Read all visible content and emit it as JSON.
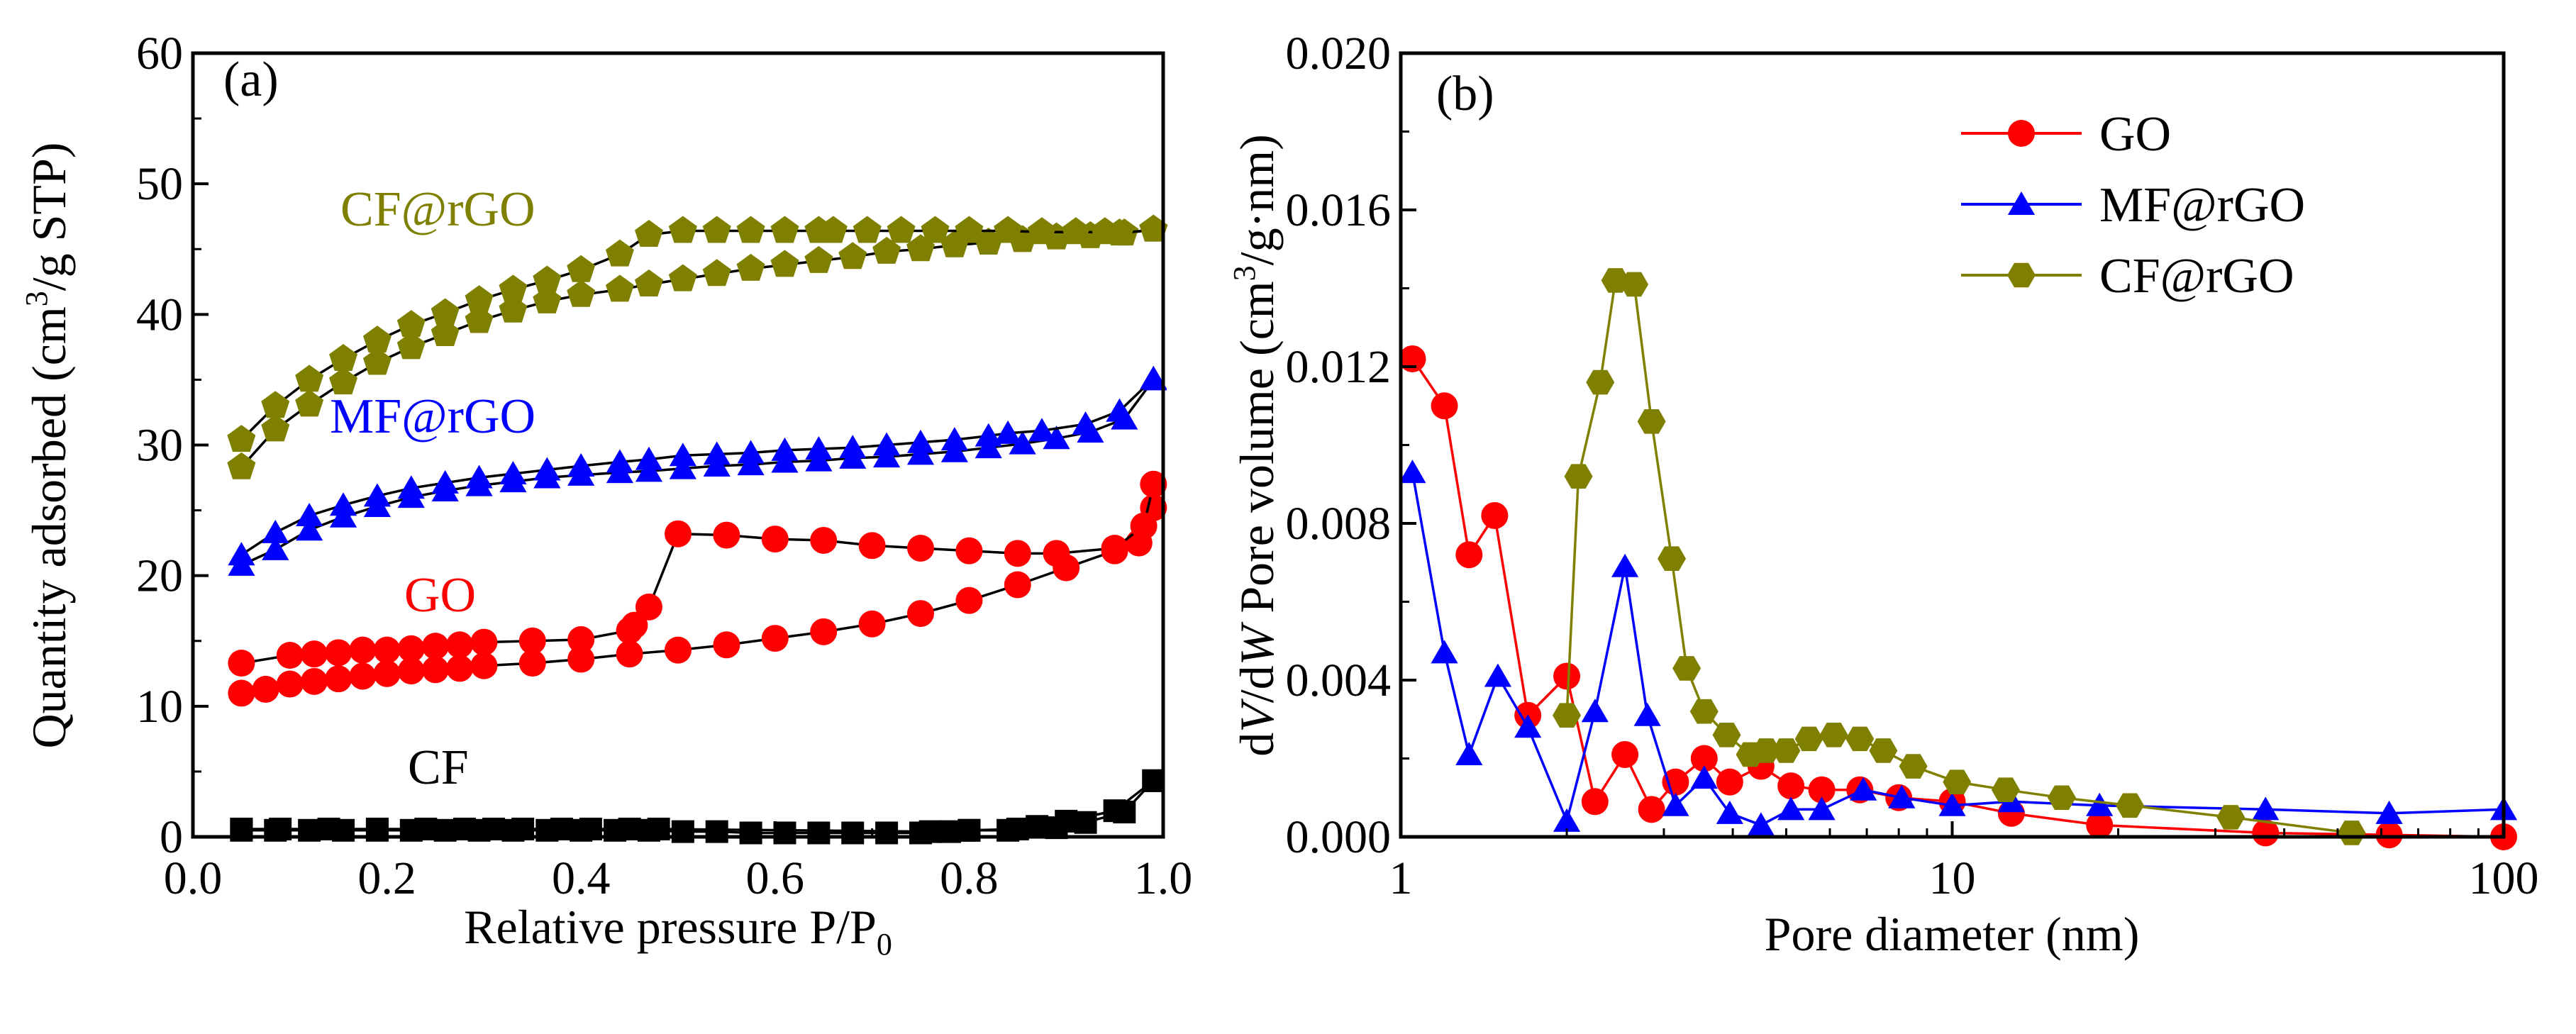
{
  "chart_data": [
    {
      "type": "scatter",
      "panel_label": "(a)",
      "xlabel": "Relative pressure P/P",
      "xlabel_sub": "0",
      "ylabel_pre": "Quantity adsorbed (cm",
      "ylabel_sup": "3",
      "ylabel_post": "/g STP)",
      "xlim": [
        0.0,
        1.0
      ],
      "ylim": [
        0,
        60
      ],
      "xticks": [
        "0.0",
        "0.2",
        "0.4",
        "0.6",
        "0.8",
        "1.0"
      ],
      "yticks": [
        "0",
        "10",
        "20",
        "30",
        "40",
        "50",
        "60"
      ],
      "annotations": {
        "cf_rgo": "CF@rGO",
        "mf_rgo": "MF@rGO",
        "go": "GO",
        "cf": "CF"
      },
      "series": [
        {
          "name": "CF@rGO adsorption",
          "color": "#808000",
          "marker": "pentagon",
          "x": [
            0.05,
            0.085,
            0.12,
            0.155,
            0.19,
            0.225,
            0.26,
            0.295,
            0.33,
            0.365,
            0.4,
            0.44,
            0.47,
            0.505,
            0.54,
            0.575,
            0.61,
            0.645,
            0.68,
            0.715,
            0.75,
            0.785,
            0.82,
            0.855,
            0.89,
            0.925,
            0.96,
            0.99
          ],
          "y": [
            28.3,
            31.2,
            33.1,
            34.8,
            36.3,
            37.5,
            38.5,
            39.5,
            40.3,
            41.0,
            41.5,
            41.9,
            42.3,
            42.7,
            43.1,
            43.5,
            43.8,
            44.1,
            44.4,
            44.8,
            45.0,
            45.3,
            45.5,
            45.7,
            45.9,
            46.0,
            46.2,
            46.5
          ]
        },
        {
          "name": "CF@rGO desorption",
          "color": "#808000",
          "marker": "pentagon",
          "x": [
            0.05,
            0.085,
            0.12,
            0.155,
            0.19,
            0.225,
            0.26,
            0.295,
            0.33,
            0.365,
            0.4,
            0.44,
            0.47,
            0.505,
            0.54,
            0.575,
            0.61,
            0.645,
            0.66,
            0.695,
            0.73,
            0.765,
            0.8,
            0.84,
            0.875,
            0.91,
            0.94,
            0.955,
            0.99
          ],
          "y": [
            30.4,
            33.0,
            35.0,
            36.6,
            38.0,
            39.2,
            40.1,
            41.1,
            41.9,
            42.6,
            43.4,
            44.6,
            46.1,
            46.4,
            46.4,
            46.4,
            46.4,
            46.4,
            46.4,
            46.4,
            46.4,
            46.4,
            46.4,
            46.4,
            46.3,
            46.3,
            46.3,
            46.2,
            46.5
          ]
        },
        {
          "name": "MF@rGO adsorption",
          "color": "#0000ff",
          "marker": "triangle",
          "x": [
            0.05,
            0.085,
            0.12,
            0.155,
            0.19,
            0.225,
            0.26,
            0.295,
            0.33,
            0.365,
            0.4,
            0.44,
            0.47,
            0.505,
            0.54,
            0.575,
            0.61,
            0.645,
            0.68,
            0.715,
            0.75,
            0.785,
            0.82,
            0.855,
            0.89,
            0.925,
            0.96,
            0.99
          ],
          "y": [
            20.8,
            22.0,
            23.5,
            24.5,
            25.3,
            26.0,
            26.5,
            26.9,
            27.2,
            27.5,
            27.7,
            27.9,
            28.0,
            28.2,
            28.4,
            28.5,
            28.7,
            28.8,
            29.0,
            29.1,
            29.3,
            29.5,
            29.8,
            30.1,
            30.5,
            31.0,
            32.0,
            35.0
          ]
        },
        {
          "name": "MF@rGO desorption",
          "color": "#0000ff",
          "marker": "triangle",
          "x": [
            0.05,
            0.085,
            0.12,
            0.155,
            0.19,
            0.225,
            0.26,
            0.295,
            0.33,
            0.365,
            0.4,
            0.44,
            0.47,
            0.505,
            0.54,
            0.575,
            0.61,
            0.645,
            0.68,
            0.715,
            0.75,
            0.785,
            0.82,
            0.84,
            0.875,
            0.92,
            0.955,
            0.99
          ],
          "y": [
            21.6,
            23.3,
            24.6,
            25.4,
            26.1,
            26.7,
            27.1,
            27.5,
            27.8,
            28.1,
            28.4,
            28.7,
            28.9,
            29.2,
            29.3,
            29.4,
            29.6,
            29.7,
            29.8,
            30.0,
            30.2,
            30.4,
            30.7,
            30.9,
            31.1,
            31.6,
            32.6,
            35.1
          ]
        },
        {
          "name": "GO adsorption",
          "color": "#ff0000",
          "marker": "circle",
          "x": [
            0.05,
            0.075,
            0.1,
            0.125,
            0.15,
            0.175,
            0.2,
            0.225,
            0.25,
            0.275,
            0.3,
            0.35,
            0.4,
            0.45,
            0.5,
            0.55,
            0.6,
            0.65,
            0.7,
            0.75,
            0.8,
            0.85,
            0.9,
            0.95,
            0.975,
            0.99
          ],
          "y": [
            11.0,
            11.3,
            11.7,
            11.9,
            12.1,
            12.3,
            12.5,
            12.7,
            12.8,
            12.9,
            13.1,
            13.3,
            13.6,
            14.0,
            14.3,
            14.7,
            15.2,
            15.7,
            16.3,
            17.1,
            18.1,
            19.3,
            20.6,
            21.9,
            22.5,
            25.2
          ]
        },
        {
          "name": "GO desorption",
          "color": "#ff0000",
          "marker": "circle",
          "x": [
            0.05,
            0.1,
            0.125,
            0.15,
            0.175,
            0.2,
            0.225,
            0.25,
            0.275,
            0.3,
            0.35,
            0.4,
            0.45,
            0.455,
            0.47,
            0.5,
            0.55,
            0.6,
            0.65,
            0.7,
            0.75,
            0.8,
            0.85,
            0.89,
            0.95,
            0.98,
            0.99
          ],
          "y": [
            13.3,
            13.9,
            14.0,
            14.1,
            14.3,
            14.3,
            14.4,
            14.6,
            14.7,
            14.9,
            15.0,
            15.1,
            15.8,
            16.2,
            17.6,
            23.2,
            23.1,
            22.8,
            22.7,
            22.3,
            22.1,
            21.9,
            21.7,
            21.7,
            22.1,
            23.8,
            27.0
          ]
        },
        {
          "name": "CF adsorption",
          "color": "#000000",
          "marker": "square",
          "x": [
            0.05,
            0.085,
            0.12,
            0.155,
            0.19,
            0.225,
            0.26,
            0.295,
            0.33,
            0.365,
            0.4,
            0.435,
            0.47,
            0.505,
            0.54,
            0.575,
            0.61,
            0.645,
            0.68,
            0.715,
            0.75,
            0.78,
            0.8,
            0.84,
            0.87,
            0.89,
            0.92,
            0.96,
            0.99
          ],
          "y": [
            0.5,
            0.5,
            0.5,
            0.5,
            0.5,
            0.5,
            0.5,
            0.5,
            0.5,
            0.5,
            0.5,
            0.5,
            0.5,
            0.4,
            0.4,
            0.3,
            0.3,
            0.3,
            0.3,
            0.3,
            0.3,
            0.4,
            0.5,
            0.5,
            0.8,
            0.7,
            1.1,
            1.9,
            4.3
          ]
        },
        {
          "name": "CF desorption",
          "color": "#000000",
          "marker": "square",
          "x": [
            0.05,
            0.09,
            0.14,
            0.19,
            0.24,
            0.28,
            0.31,
            0.34,
            0.38,
            0.41,
            0.45,
            0.48,
            0.76,
            0.8,
            0.85,
            0.9,
            0.95,
            0.99
          ],
          "y": [
            0.6,
            0.6,
            0.6,
            0.6,
            0.6,
            0.6,
            0.6,
            0.6,
            0.6,
            0.6,
            0.6,
            0.6,
            0.4,
            0.5,
            0.6,
            1.2,
            2.0,
            4.3
          ]
        }
      ]
    },
    {
      "type": "line",
      "panel_label": "(b)",
      "xlabel": "Pore diameter (nm)",
      "ylabel_parts": [
        "d",
        "V",
        "/d",
        "W",
        " Pore volume (cm",
        "3",
        "/g·nm)"
      ],
      "xscale": "log",
      "xlim": [
        1,
        100
      ],
      "ylim": [
        0,
        0.02
      ],
      "xticks": [
        "1",
        "10",
        "100"
      ],
      "yticks": [
        "0.000",
        "0.004",
        "0.008",
        "0.012",
        "0.016",
        "0.020"
      ],
      "legend_position": "top-right",
      "series": [
        {
          "name": "GO",
          "color": "#ff0000",
          "marker": "circle",
          "x": [
            1.05,
            1.2,
            1.33,
            1.48,
            1.7,
            2.0,
            2.25,
            2.55,
            2.85,
            3.15,
            3.55,
            3.95,
            4.5,
            5.1,
            5.8,
            6.8,
            8.0,
            10,
            12.8,
            18.5,
            37,
            62,
            100
          ],
          "y": [
            0.0122,
            0.011,
            0.0072,
            0.0082,
            0.0031,
            0.0041,
            0.0009,
            0.0021,
            0.0007,
            0.0014,
            0.002,
            0.0014,
            0.0018,
            0.0013,
            0.0012,
            0.0012,
            0.001,
            0.0009,
            0.0006,
            0.0003,
            0.0001,
            5e-05,
            0
          ]
        },
        {
          "name": "MF@rGO",
          "color": "#0000ff",
          "marker": "triangle",
          "x": [
            1.05,
            1.2,
            1.33,
            1.5,
            1.7,
            2.0,
            2.25,
            2.55,
            2.8,
            3.15,
            3.55,
            3.95,
            4.5,
            5.1,
            5.8,
            6.9,
            8.1,
            10,
            12.8,
            18.5,
            37,
            62,
            100
          ],
          "y": [
            0.0093,
            0.0047,
            0.0021,
            0.0041,
            0.0028,
            0.0004,
            0.0032,
            0.0069,
            0.0031,
            0.0008,
            0.0015,
            0.0006,
            0.0003,
            0.0007,
            0.0007,
            0.0012,
            0.001,
            0.0008,
            0.0009,
            0.0008,
            0.0007,
            0.0006,
            0.0007
          ]
        },
        {
          "name": "CF@rGO",
          "color": "#808000",
          "marker": "hexagon",
          "x": [
            2.0,
            2.1,
            2.3,
            2.45,
            2.65,
            2.85,
            3.1,
            3.3,
            3.55,
            3.9,
            4.3,
            4.6,
            5.0,
            5.5,
            6.1,
            6.8,
            7.5,
            8.5,
            10.2,
            12.5,
            15.8,
            21,
            32,
            53
          ],
          "y": [
            0.0031,
            0.0092,
            0.0116,
            0.0142,
            0.0141,
            0.0106,
            0.0071,
            0.0043,
            0.0032,
            0.0026,
            0.0021,
            0.0022,
            0.0022,
            0.0025,
            0.0026,
            0.0025,
            0.0022,
            0.0018,
            0.0014,
            0.0012,
            0.001,
            0.0008,
            0.0005,
            0.0001
          ]
        }
      ]
    }
  ]
}
